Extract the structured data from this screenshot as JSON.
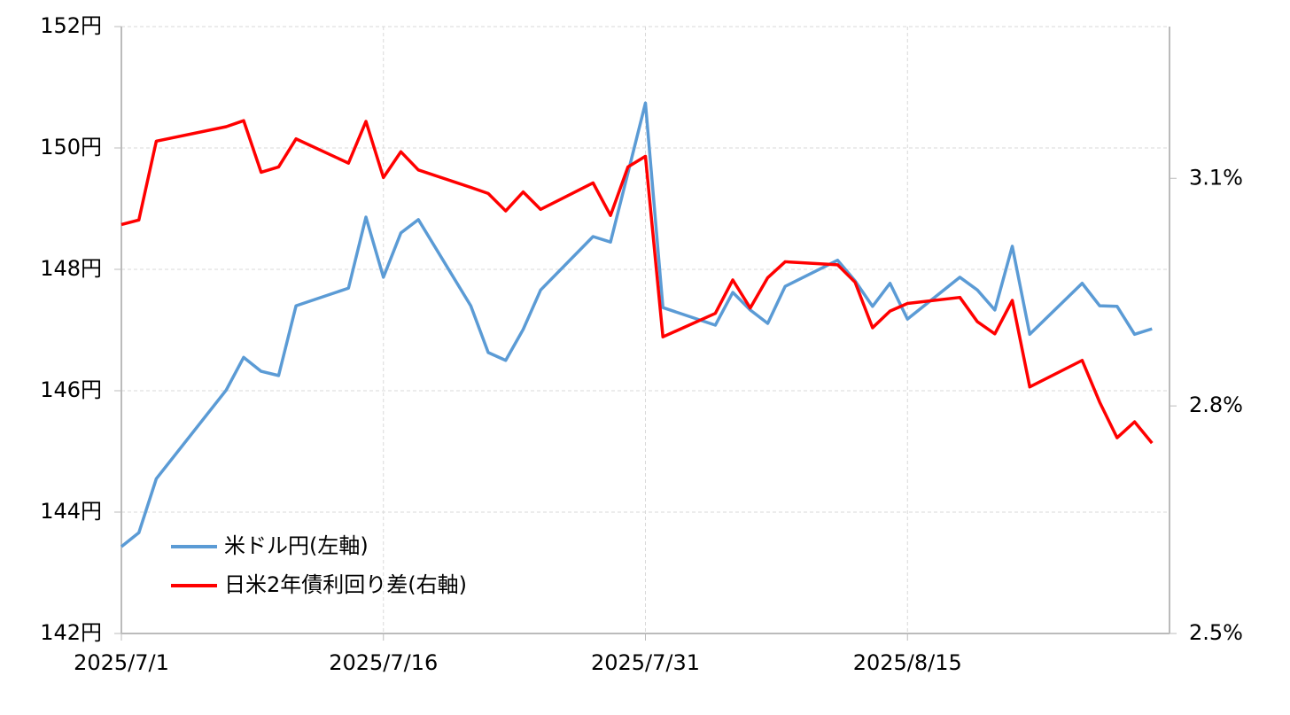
{
  "chart_data": {
    "type": "line",
    "x": [
      "2025/7/1",
      "2025/7/2",
      "2025/7/3",
      "2025/7/7",
      "2025/7/8",
      "2025/7/9",
      "2025/7/10",
      "2025/7/11",
      "2025/7/14",
      "2025/7/15",
      "2025/7/16",
      "2025/7/17",
      "2025/7/18",
      "2025/7/21",
      "2025/7/22",
      "2025/7/23",
      "2025/7/24",
      "2025/7/25",
      "2025/7/28",
      "2025/7/29",
      "2025/7/30",
      "2025/7/31",
      "2025/8/1",
      "2025/8/4",
      "2025/8/5",
      "2025/8/6",
      "2025/8/7",
      "2025/8/8",
      "2025/8/11",
      "2025/8/12",
      "2025/8/13",
      "2025/8/14",
      "2025/8/15",
      "2025/8/18",
      "2025/8/19",
      "2025/8/20",
      "2025/8/21",
      "2025/8/22",
      "2025/8/25",
      "2025/8/26",
      "2025/8/27",
      "2025/8/28",
      "2025/8/29"
    ],
    "series": [
      {
        "name": "米ドル円(左軸)",
        "color": "#5b9bd5",
        "axis": "y",
        "values": [
          143.43,
          143.66,
          144.55,
          146.01,
          146.55,
          146.32,
          146.25,
          147.4,
          147.69,
          148.86,
          147.87,
          148.6,
          148.82,
          147.4,
          146.63,
          146.5,
          147.01,
          147.66,
          148.54,
          148.45,
          149.59,
          150.74,
          147.37,
          147.08,
          147.62,
          147.33,
          147.11,
          147.72,
          148.15,
          147.81,
          147.39,
          147.77,
          147.18,
          147.87,
          147.66,
          147.33,
          148.38,
          146.93,
          147.77,
          147.4,
          147.39,
          146.93,
          147.02
        ]
      },
      {
        "name": "日米2年債利回り差(右軸)",
        "color": "#ff0000",
        "axis": "y2",
        "values": [
          3.039,
          3.045,
          3.149,
          3.168,
          3.176,
          3.108,
          3.115,
          3.152,
          3.12,
          3.175,
          3.101,
          3.135,
          3.111,
          3.088,
          3.08,
          3.057,
          3.082,
          3.059,
          3.094,
          3.051,
          3.115,
          3.129,
          2.891,
          2.922,
          2.966,
          2.929,
          2.969,
          2.99,
          2.986,
          2.963,
          2.903,
          2.925,
          2.935,
          2.943,
          2.911,
          2.895,
          2.939,
          2.825,
          2.86,
          2.805,
          2.758,
          2.779,
          2.751
        ]
      }
    ],
    "xlim": [
      "2025/7/1",
      "2025/8/30"
    ],
    "xticks": [
      "2025/7/1",
      "2025/7/16",
      "2025/7/31",
      "2025/8/15"
    ],
    "ylim": [
      142,
      152
    ],
    "yticks": [
      {
        "value": 142,
        "label": "142円"
      },
      {
        "value": 144,
        "label": "144円"
      },
      {
        "value": 146,
        "label": "146円"
      },
      {
        "value": 148,
        "label": "148円"
      },
      {
        "value": 150,
        "label": "150円"
      },
      {
        "value": 152,
        "label": "152円"
      }
    ],
    "y2lim": [
      2.5,
      3.3
    ],
    "y2ticks": [
      {
        "value": 2.5,
        "label": "2.5%"
      },
      {
        "value": 2.8,
        "label": "2.8%"
      },
      {
        "value": 3.1,
        "label": "3.1%"
      }
    ],
    "grid": true,
    "legend": "lower-left"
  }
}
